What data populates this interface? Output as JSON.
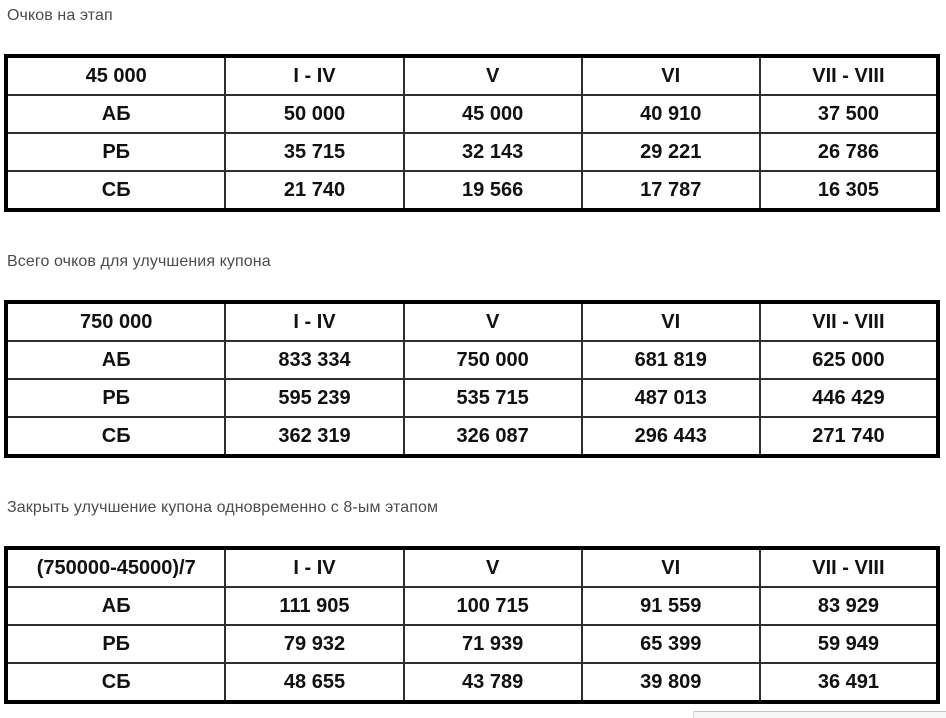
{
  "sections": [
    {
      "title": "Очков на этап",
      "table": {
        "header": [
          "45 000",
          "I - IV",
          "V",
          "VI",
          "VII - VIII"
        ],
        "rows": [
          {
            "label": "АБ",
            "values": [
              "50 000",
              "45 000",
              "40 910",
              "37 500"
            ]
          },
          {
            "label": "РБ",
            "values": [
              "35 715",
              "32 143",
              "29 221",
              "26 786"
            ]
          },
          {
            "label": "СБ",
            "values": [
              "21 740",
              "19 566",
              "17 787",
              "16 305"
            ]
          }
        ]
      }
    },
    {
      "title": "Всего очков для улучшения купона",
      "table": {
        "header": [
          "750 000",
          "I - IV",
          "V",
          "VI",
          "VII - VIII"
        ],
        "rows": [
          {
            "label": "АБ",
            "values": [
              "833 334",
              "750 000",
              "681 819",
              "625 000"
            ]
          },
          {
            "label": "РБ",
            "values": [
              "595 239",
              "535 715",
              "487 013",
              "446 429"
            ]
          },
          {
            "label": "СБ",
            "values": [
              "362 319",
              "326 087",
              "296 443",
              "271 740"
            ]
          }
        ]
      }
    },
    {
      "title": "Закрыть улучшение купона одновременно с 8-ым этапом",
      "table": {
        "header": [
          "(750000-45000)/7",
          "I - IV",
          "V",
          "VI",
          "VII - VIII"
        ],
        "rows": [
          {
            "label": "АБ",
            "values": [
              "111 905",
              "100 715",
              "91 559",
              "83 929"
            ]
          },
          {
            "label": "РБ",
            "values": [
              "79 932",
              "71 939",
              "65 399",
              "59 949"
            ]
          },
          {
            "label": "СБ",
            "values": [
              "48 655",
              "43 789",
              "39 809",
              "36 491"
            ]
          }
        ]
      }
    }
  ],
  "colors": {
    "title_text": "#4c4c4c",
    "table_text": "#111111",
    "table_border_outer": "#000000",
    "table_border_inner": "#2e2e2e",
    "page_background": "#ffffff"
  }
}
